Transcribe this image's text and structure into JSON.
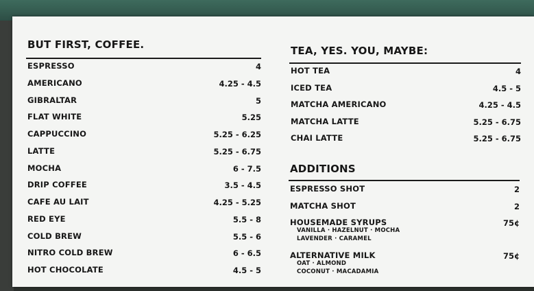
{
  "left": {
    "title": "BUT FIRST, COFFEE.",
    "items": [
      {
        "name": "ESPRESSO",
        "price": "4"
      },
      {
        "name": "AMERICANO",
        "price": "4.25 - 4.5"
      },
      {
        "name": "GIBRALTAR",
        "price": "5"
      },
      {
        "name": "FLAT WHITE",
        "price": "5.25"
      },
      {
        "name": "CAPPUCCINO",
        "price": "5.25 - 6.25"
      },
      {
        "name": "LATTE",
        "price": "5.25 - 6.75"
      },
      {
        "name": "MOCHA",
        "price": "6 - 7.5"
      },
      {
        "name": "DRIP COFFEE",
        "price": "3.5 - 4.5"
      },
      {
        "name": "CAFE AU LAIT",
        "price": "4.25 - 5.25"
      },
      {
        "name": "RED EYE",
        "price": "5.5 - 8"
      },
      {
        "name": "COLD BREW",
        "price": "5.5 - 6"
      },
      {
        "name": "NITRO COLD BREW",
        "price": "6 - 6.5"
      },
      {
        "name": "HOT CHOCOLATE",
        "price": "4.5 - 5"
      }
    ]
  },
  "right": {
    "title": "TEA, YES. YOU, MAYBE:",
    "items": [
      {
        "name": "HOT TEA",
        "price": "4"
      },
      {
        "name": "ICED TEA",
        "price": "4.5 - 5"
      },
      {
        "name": "MATCHA AMERICANO",
        "price": "4.25 - 4.5"
      },
      {
        "name": "MATCHA LATTE",
        "price": "5.25 - 6.75"
      },
      {
        "name": "CHAI LATTE",
        "price": "5.25 - 6.75"
      }
    ]
  },
  "additions": {
    "title": "ADDITIONS",
    "items": [
      {
        "name": "ESPRESSO SHOT",
        "price": "2"
      },
      {
        "name": "MATCHA SHOT",
        "price": "2"
      },
      {
        "name": "HOUSEMADE SYRUPS",
        "price": "75¢",
        "options": [
          "VANILLA · HAZELNUT · MOCHA",
          "LAVENDER · CARAMEL"
        ]
      },
      {
        "name": "ALTERNATIVE MILK",
        "price": "75¢",
        "options": [
          "OAT · ALMOND",
          "COCONUT · MACADAMIA"
        ]
      }
    ]
  }
}
